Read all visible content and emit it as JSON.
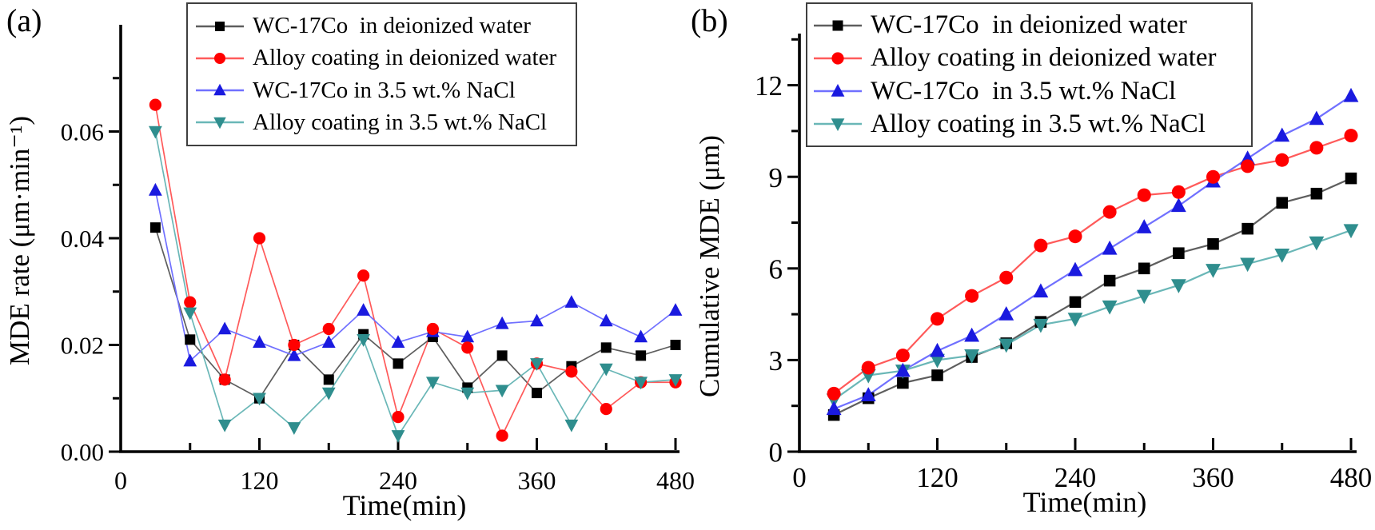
{
  "chart_data": [
    {
      "type": "line",
      "panel_label": "(a)",
      "xlabel": "Time(min)",
      "ylabel": "MDE rate (μm·min⁻¹)",
      "xlim": [
        0,
        480
      ],
      "ylim": [
        0,
        0.08
      ],
      "grid": false,
      "legend_position": "top-inside",
      "x_major_ticks": [
        0,
        120,
        240,
        360,
        480
      ],
      "x_tick_labels": [
        "0",
        "120",
        "240",
        "360",
        "480"
      ],
      "x_minor_ticks": [
        60,
        180,
        300,
        420
      ],
      "y_major_ticks": [
        0.0,
        0.02,
        0.04,
        0.06
      ],
      "y_tick_labels": [
        "0.00",
        "0.02",
        "0.04",
        "0.06"
      ],
      "y_minor_ticks": [
        0.01,
        0.03,
        0.05,
        0.07
      ],
      "x": [
        30,
        60,
        90,
        120,
        150,
        180,
        210,
        240,
        270,
        300,
        330,
        360,
        390,
        420,
        450,
        480
      ],
      "series": [
        {
          "name": "WC-17Co  in deionized water",
          "marker": "square",
          "marker_color": "#000000",
          "line_color": "#5e5e5e",
          "values": [
            0.042,
            0.021,
            0.0135,
            0.01,
            0.02,
            0.0135,
            0.022,
            0.0165,
            0.0215,
            0.012,
            0.018,
            0.011,
            0.016,
            0.0195,
            0.018,
            0.02
          ]
        },
        {
          "name": "Alloy coating in deionized water",
          "marker": "circle",
          "marker_color": "#ff0000",
          "line_color": "#ff5a5a",
          "values": [
            0.065,
            0.028,
            0.0135,
            0.04,
            0.02,
            0.023,
            0.033,
            0.0065,
            0.023,
            0.0195,
            0.003,
            0.0165,
            0.015,
            0.008,
            0.013,
            0.013
          ]
        },
        {
          "name": "WC-17Co in 3.5 wt.% NaCl",
          "marker": "triangle-up",
          "marker_color": "#1a1adf",
          "line_color": "#7070ff",
          "values": [
            0.049,
            0.017,
            0.023,
            0.0205,
            0.018,
            0.0205,
            0.0265,
            0.0205,
            0.0225,
            0.0215,
            0.024,
            0.0245,
            0.028,
            0.0245,
            0.0215,
            0.0265
          ]
        },
        {
          "name": "Alloy coating in 3.5 wt.% NaCl",
          "marker": "triangle-down",
          "marker_color": "#2f8e8e",
          "line_color": "#6ab7b7",
          "values": [
            0.06,
            0.026,
            0.005,
            0.01,
            0.0045,
            0.011,
            0.021,
            0.003,
            0.013,
            0.011,
            0.0115,
            0.0165,
            0.005,
            0.0155,
            0.013,
            0.0135
          ]
        }
      ]
    },
    {
      "type": "line",
      "panel_label": "(b)",
      "xlabel": "Time(min)",
      "ylabel": "Cumulative MDE (μm)",
      "xlim": [
        0,
        480
      ],
      "ylim": [
        0,
        13.7
      ],
      "grid": false,
      "legend_position": "top-inside",
      "x_major_ticks": [
        0,
        120,
        240,
        360,
        480
      ],
      "x_tick_labels": [
        "0",
        "120",
        "240",
        "360",
        "480"
      ],
      "x_minor_ticks": [
        60,
        180,
        300,
        420
      ],
      "y_major_ticks": [
        0,
        3,
        6,
        9,
        12
      ],
      "y_tick_labels": [
        "0",
        "3",
        "6",
        "9",
        "12"
      ],
      "y_minor_ticks": [
        1.5,
        4.5,
        7.5,
        10.5,
        13.5
      ],
      "x": [
        30,
        60,
        90,
        120,
        150,
        180,
        210,
        240,
        270,
        300,
        330,
        360,
        390,
        420,
        450,
        480
      ],
      "series": [
        {
          "name": "WC-17Co  in deionized water",
          "marker": "square",
          "marker_color": "#000000",
          "line_color": "#5e5e5e",
          "values": [
            1.2,
            1.75,
            2.25,
            2.5,
            3.1,
            3.55,
            4.25,
            4.9,
            5.6,
            6.0,
            6.5,
            6.8,
            7.3,
            8.15,
            8.45,
            8.95
          ]
        },
        {
          "name": "Alloy coating in deionized water",
          "marker": "circle",
          "marker_color": "#ff0000",
          "line_color": "#ff5a5a",
          "values": [
            1.9,
            2.75,
            3.15,
            4.35,
            5.1,
            5.7,
            6.75,
            7.05,
            7.85,
            8.4,
            8.5,
            9.0,
            9.35,
            9.55,
            9.95,
            10.35
          ]
        },
        {
          "name": "WC-17Co  in 3.5 wt.% NaCl",
          "marker": "triangle-up",
          "marker_color": "#1a1adf",
          "line_color": "#7070ff",
          "values": [
            1.4,
            1.85,
            2.65,
            3.3,
            3.8,
            4.5,
            5.25,
            5.95,
            6.65,
            7.35,
            8.05,
            8.85,
            9.6,
            10.35,
            10.9,
            11.65
          ]
        },
        {
          "name": "Alloy coating in 3.5 wt.% NaCl",
          "marker": "triangle-down",
          "marker_color": "#2f8e8e",
          "line_color": "#6ab7b7",
          "values": [
            1.7,
            2.5,
            2.65,
            3.0,
            3.15,
            3.5,
            4.15,
            4.35,
            4.75,
            5.1,
            5.45,
            5.95,
            6.15,
            6.45,
            6.85,
            7.25
          ]
        }
      ]
    }
  ]
}
